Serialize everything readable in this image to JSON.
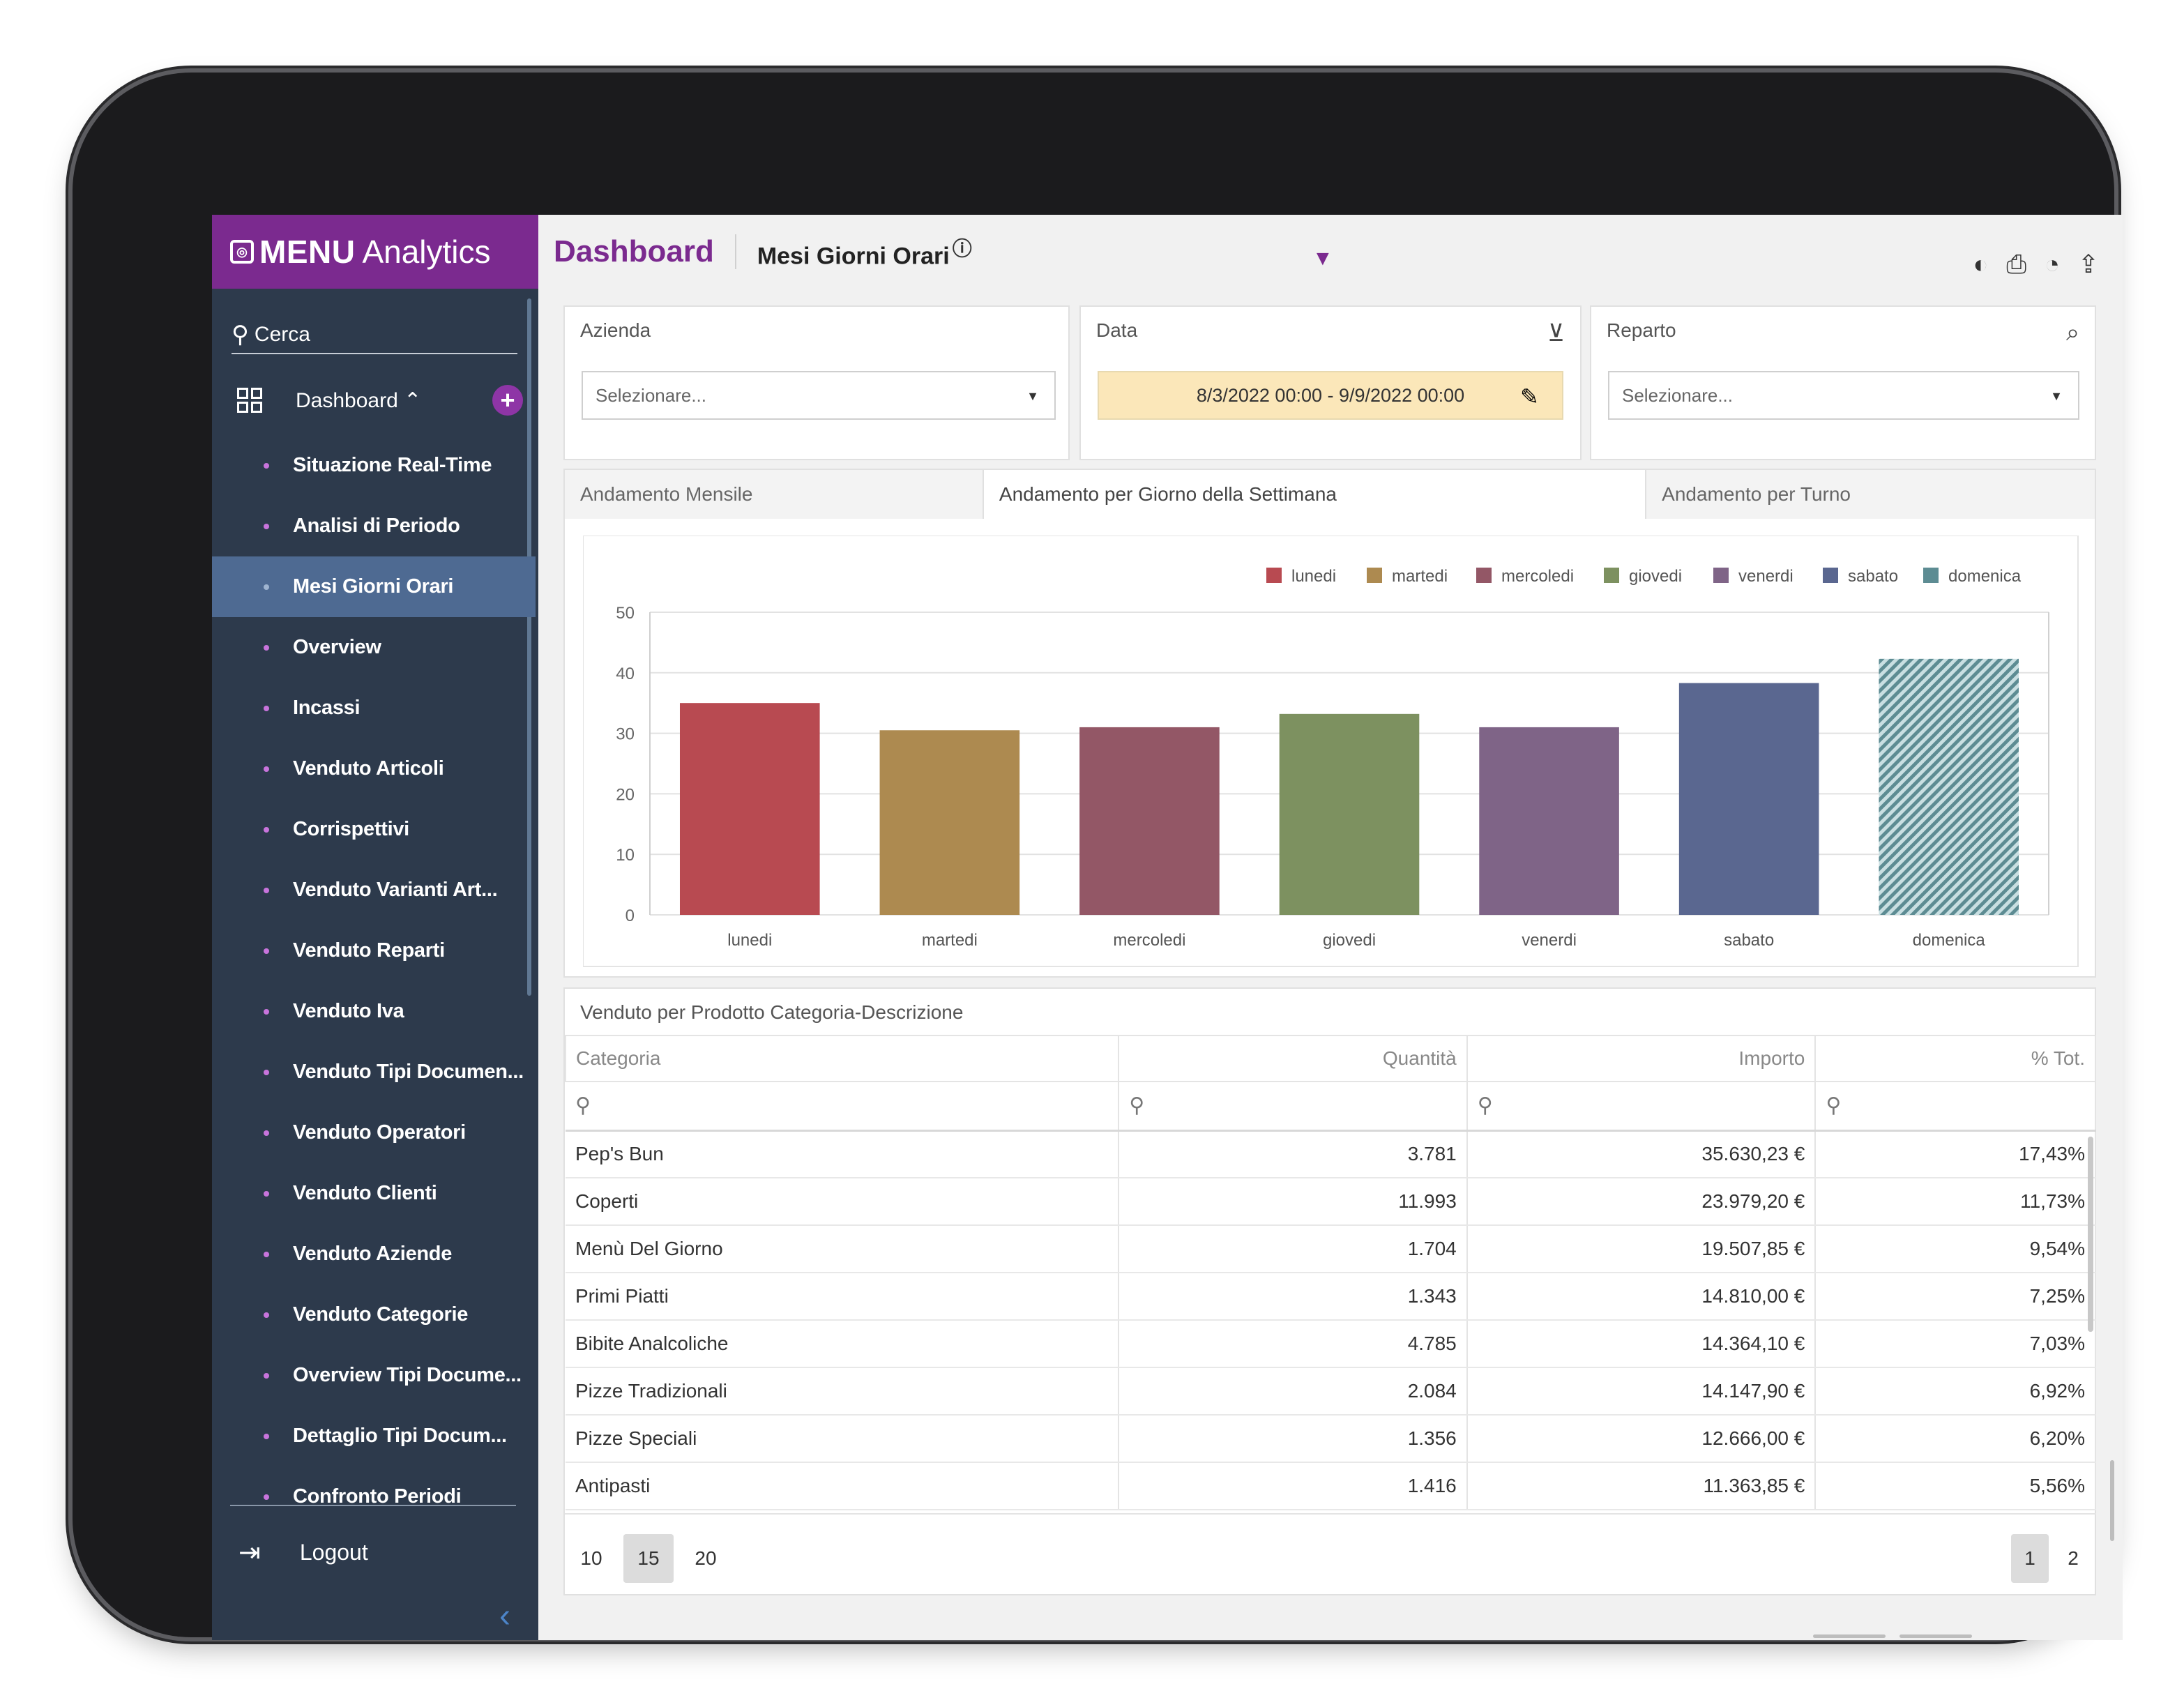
{
  "brand": {
    "bold": "MENU",
    "light": "Analytics"
  },
  "sidebar": {
    "search_label": "Cerca",
    "dashboard_label": "Dashboard ⌃",
    "items": [
      {
        "label": "Situazione Real-Time"
      },
      {
        "label": "Analisi di Periodo"
      },
      {
        "label": "Mesi Giorni Orari",
        "active": true
      },
      {
        "label": "Overview"
      },
      {
        "label": "Incassi"
      },
      {
        "label": "Venduto Articoli"
      },
      {
        "label": "Corrispettivi"
      },
      {
        "label": "Venduto Varianti Art..."
      },
      {
        "label": "Venduto Reparti"
      },
      {
        "label": "Venduto Iva"
      },
      {
        "label": "Venduto Tipi Documen..."
      },
      {
        "label": "Venduto Operatori"
      },
      {
        "label": "Venduto Clienti"
      },
      {
        "label": "Venduto Aziende"
      },
      {
        "label": "Venduto Categorie"
      },
      {
        "label": "Overview Tipi Docume..."
      },
      {
        "label": "Dettaglio Tipi Docum..."
      },
      {
        "label": "Confronto Periodi"
      }
    ],
    "logout_label": "Logout"
  },
  "header": {
    "title": "Dashboard",
    "subtitle": "Mesi Giorni Orari"
  },
  "filters": {
    "azienda": {
      "label": "Azienda",
      "placeholder": "Selezionare..."
    },
    "data": {
      "label": "Data",
      "value": "8/3/2022 00:00 - 9/9/2022 00:00"
    },
    "reparto": {
      "label": "Reparto",
      "placeholder": "Selezionare..."
    }
  },
  "tabs": [
    {
      "label": "Andamento Mensile"
    },
    {
      "label": "Andamento per Giorno della Settimana",
      "active": true
    },
    {
      "label": "Andamento per Turno"
    }
  ],
  "chart_data": {
    "type": "bar",
    "categories": [
      "lunedi",
      "martedi",
      "mercoledi",
      "giovedi",
      "venerdi",
      "sabato",
      "domenica"
    ],
    "values": [
      35,
      30.5,
      31,
      33.2,
      31,
      38.3,
      42.3
    ],
    "colors": [
      "#b84a51",
      "#ad8a50",
      "#935766",
      "#7d9160",
      "#7f6487",
      "#5a6790",
      "#5d8c93"
    ],
    "legend": [
      "lunedi",
      "martedi",
      "mercoledi",
      "giovedi",
      "venerdi",
      "sabato",
      "domenica"
    ],
    "legend_position": "top-right",
    "ylim": [
      0,
      50
    ],
    "yticks": [
      0,
      10,
      20,
      30,
      40,
      50
    ],
    "grid": true,
    "hatched_category": "domenica"
  },
  "table": {
    "title": "Venduto per Prodotto Categoria-Descrizione",
    "columns": [
      "Categoria",
      "Quantità",
      "Importo",
      "% Tot."
    ],
    "rows": [
      [
        "Pep's Bun",
        "3.781",
        "35.630,23 €",
        "17,43%"
      ],
      [
        "Coperti",
        "11.993",
        "23.979,20 €",
        "11,73%"
      ],
      [
        "Menù Del Giorno",
        "1.704",
        "19.507,85 €",
        "9,54%"
      ],
      [
        "Primi Piatti",
        "1.343",
        "14.810,00 €",
        "7,25%"
      ],
      [
        "Bibite Analcoliche",
        "4.785",
        "14.364,10 €",
        "7,03%"
      ],
      [
        "Pizze Tradizionali",
        "2.084",
        "14.147,90 €",
        "6,92%"
      ],
      [
        "Pizze Speciali",
        "1.356",
        "12.666,00 €",
        "6,20%"
      ],
      [
        "Antipasti",
        "1.416",
        "11.363,85 €",
        "5,56%"
      ]
    ],
    "page_sizes": [
      "10",
      "15",
      "20"
    ],
    "selected_page_size": "15",
    "pages": [
      "1",
      "2"
    ],
    "current_page": "1"
  }
}
